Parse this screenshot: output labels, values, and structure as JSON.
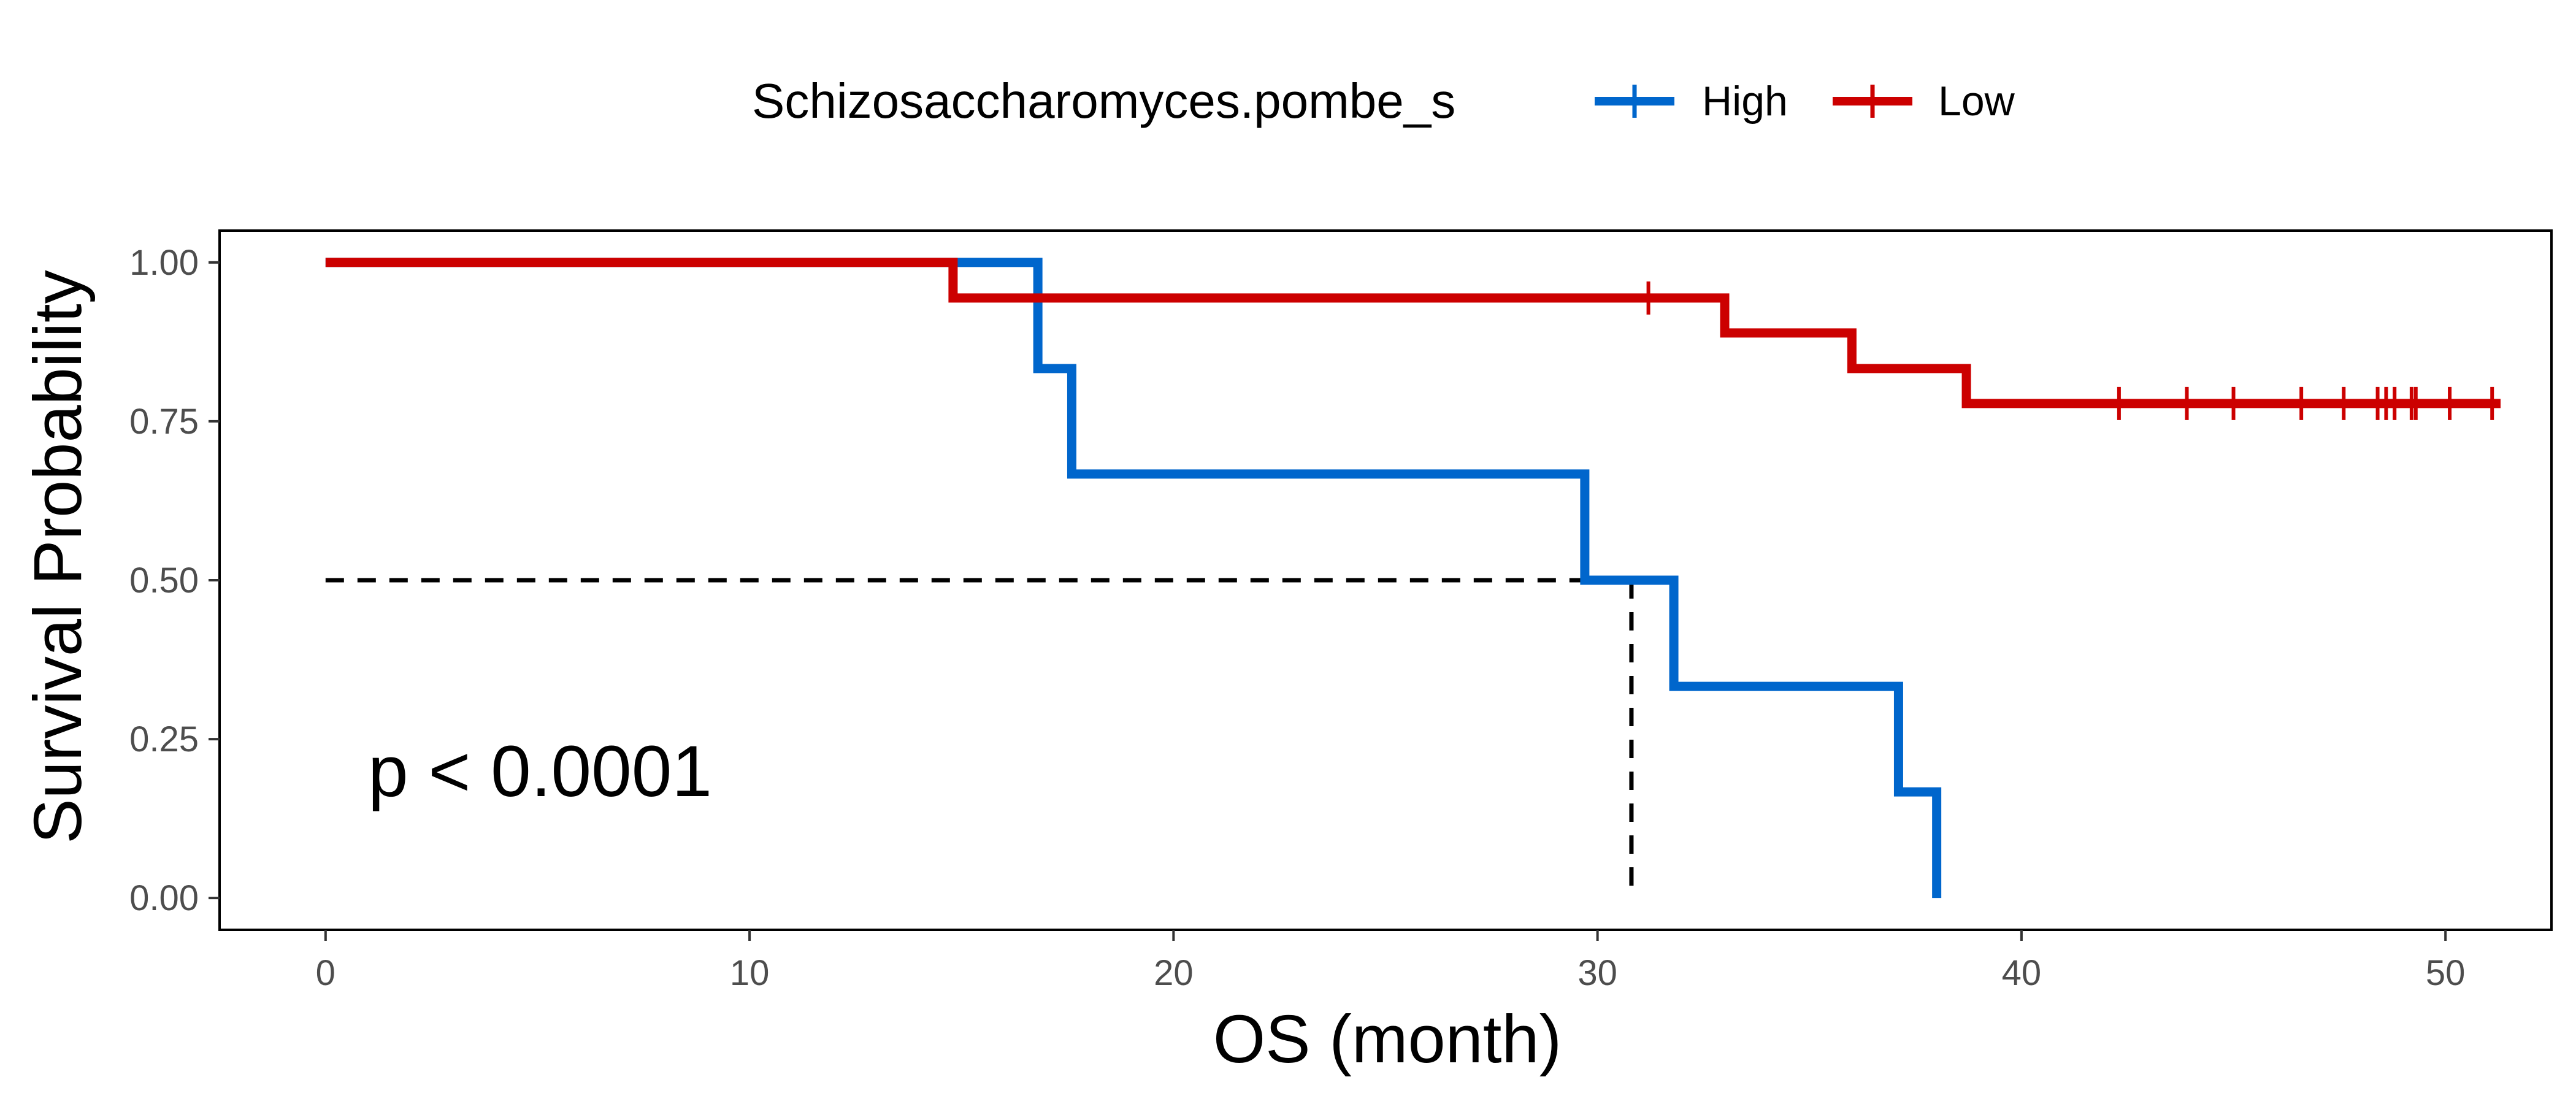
{
  "chart_data": {
    "type": "line",
    "subtype": "kaplan-meier step",
    "xlabel": "OS (month)",
    "ylabel": "Survival Probability",
    "xlim": [
      -2.5,
      52.5
    ],
    "ylim": [
      -0.05,
      1.05
    ],
    "x_ticks": [
      0,
      10,
      20,
      30,
      40,
      50
    ],
    "x_tick_labels": [
      "0",
      "10",
      "20",
      "30",
      "40",
      "50"
    ],
    "y_ticks": [
      0.0,
      0.25,
      0.5,
      0.75,
      1.0
    ],
    "y_tick_labels": [
      "0.00",
      "0.25",
      "0.50",
      "0.75",
      "1.00"
    ],
    "grid": false,
    "legend": {
      "title": "Schizosaccharomyces.pombe_s",
      "placement": "top",
      "entries": [
        "High",
        "Low"
      ]
    },
    "series": [
      {
        "name": "High",
        "color": "#0066CC",
        "steps": [
          {
            "x": 0,
            "y": 1.0
          },
          {
            "x": 16.8,
            "y": 0.833
          },
          {
            "x": 17.6,
            "y": 0.667
          },
          {
            "x": 29.7,
            "y": 0.5
          },
          {
            "x": 31.8,
            "y": 0.333
          },
          {
            "x": 37.1,
            "y": 0.167
          },
          {
            "x": 38.0,
            "y": 0.0
          }
        ],
        "end_x": 38.0,
        "censored_x": []
      },
      {
        "name": "Low",
        "color": "#CC0000",
        "steps": [
          {
            "x": 0,
            "y": 1.0
          },
          {
            "x": 14.8,
            "y": 0.944
          },
          {
            "x": 33.0,
            "y": 0.889
          },
          {
            "x": 36.0,
            "y": 0.833
          },
          {
            "x": 38.7,
            "y": 0.778
          }
        ],
        "end_x": 51.3,
        "censored_x": [
          31.2,
          42.3,
          43.9,
          45.0,
          46.6,
          47.6,
          48.4,
          48.6,
          48.8,
          49.2,
          49.3,
          50.1,
          51.1
        ]
      }
    ],
    "median_line": {
      "y": 0.5,
      "x": 30.8,
      "style": "dashed",
      "color": "#000000"
    },
    "annotation": "p < 0.0001"
  }
}
